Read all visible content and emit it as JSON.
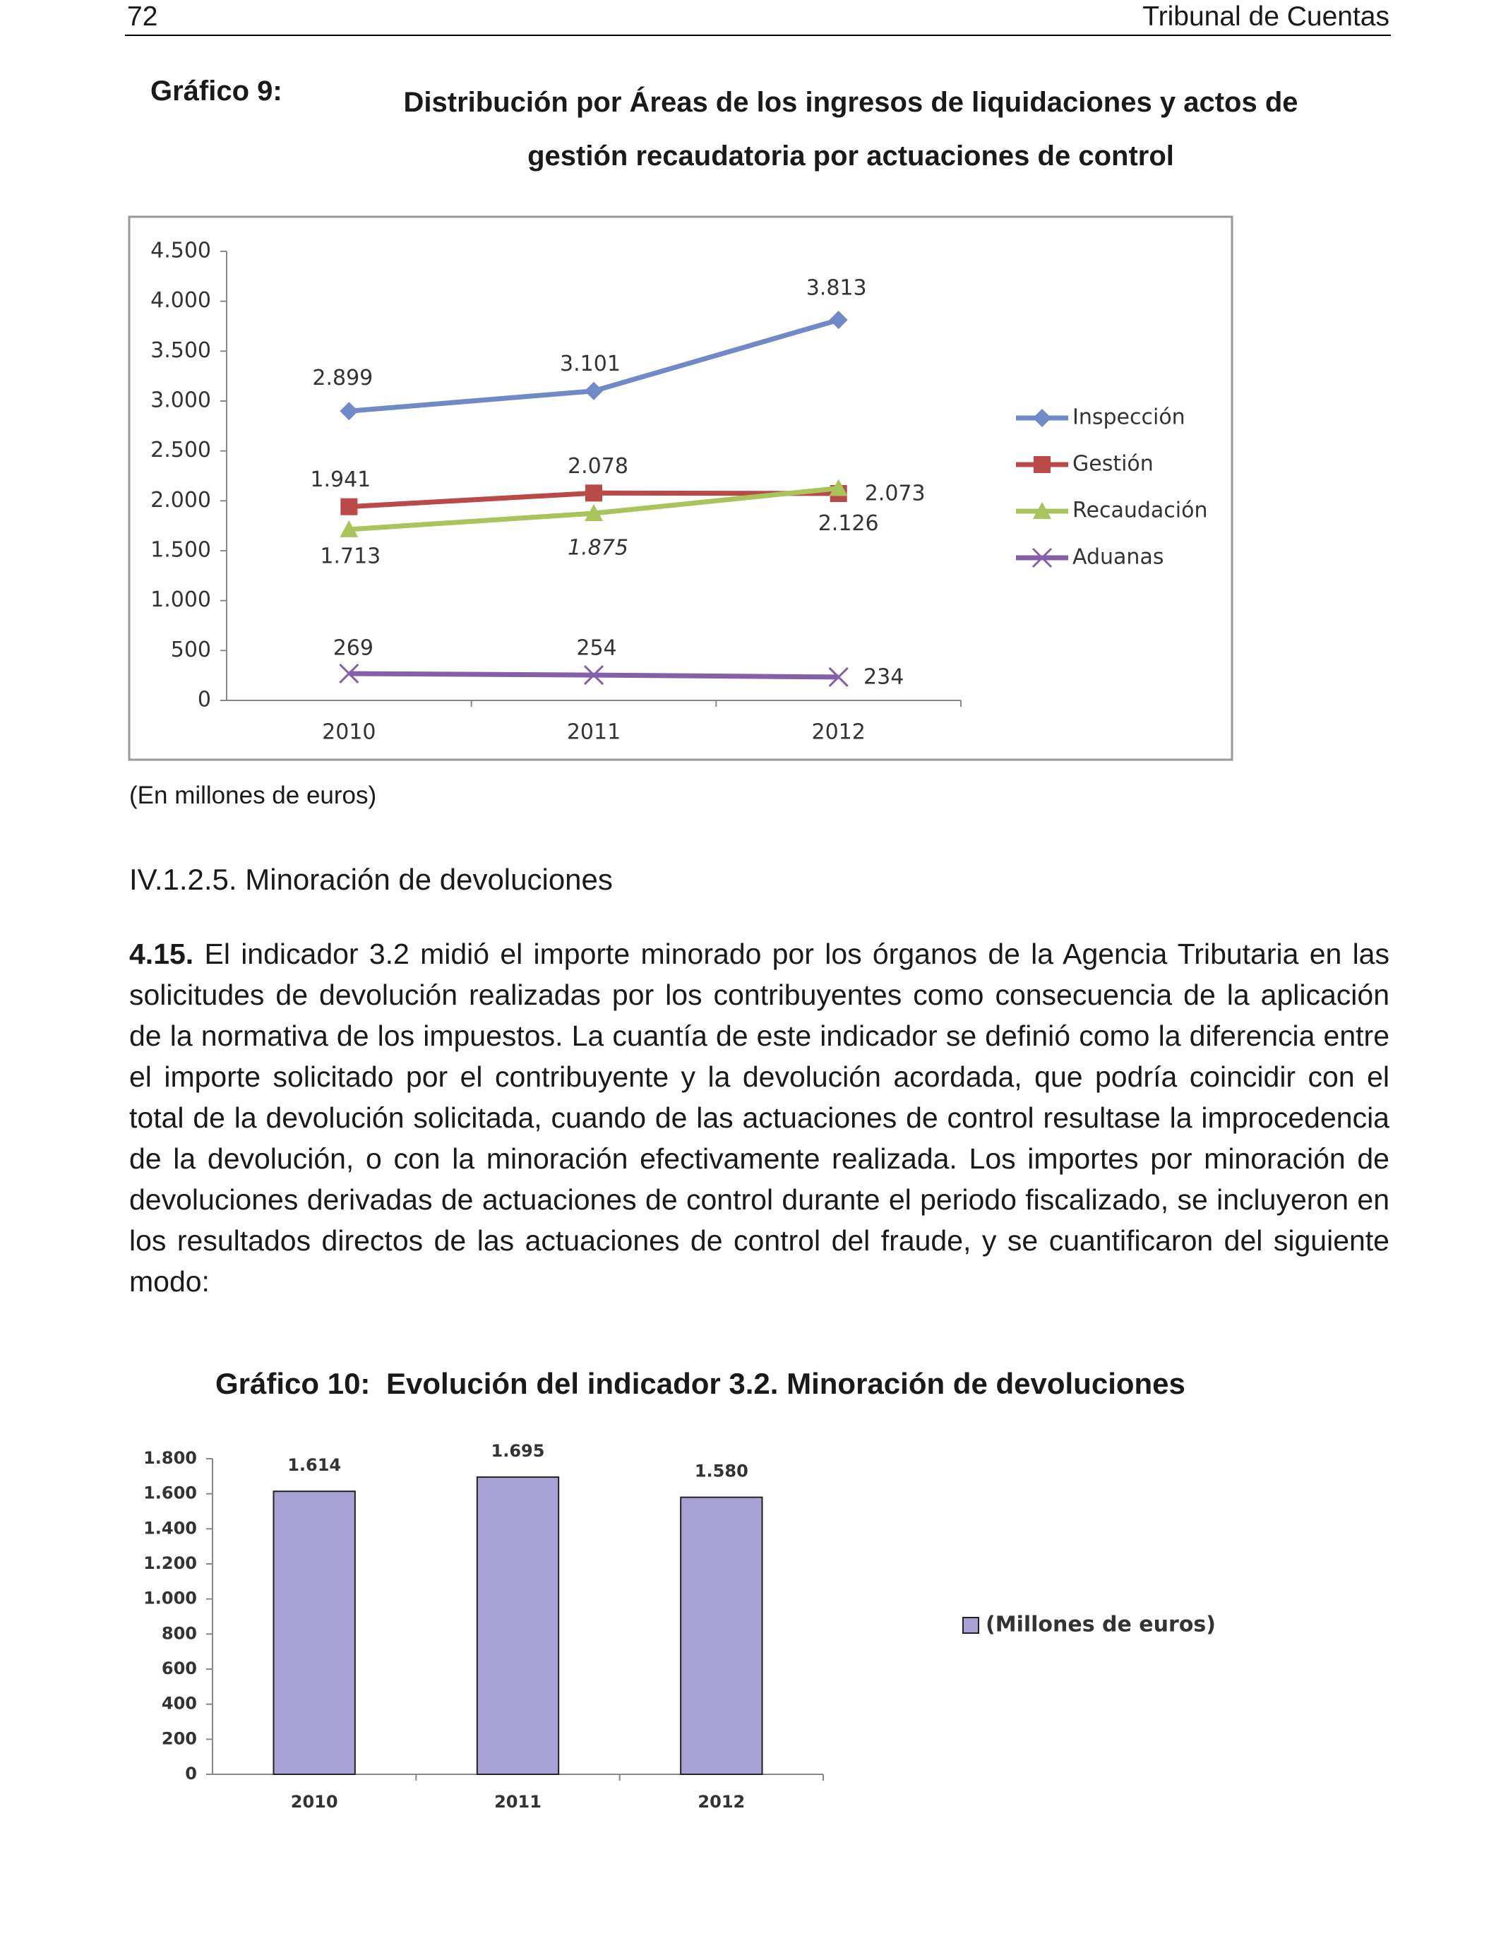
{
  "header": {
    "page_number": "72",
    "publisher": "Tribunal de Cuentas"
  },
  "chart_data": [
    {
      "type": "line",
      "label": "Gráfico 9:",
      "title": "Distribución por Áreas de los ingresos de liquidaciones y actos de gestión recaudatoria por actuaciones de control",
      "categories": [
        "2010",
        "2011",
        "2012"
      ],
      "series": [
        {
          "name": "Inspección",
          "color": "#6f8ac6",
          "marker": "diamond",
          "values": [
            2899,
            3101,
            3813
          ],
          "value_labels": [
            "2.899",
            "3.101",
            "3.813"
          ]
        },
        {
          "name": "Gestión",
          "color": "#b94a48",
          "marker": "square",
          "values": [
            1941,
            2078,
            2073
          ],
          "value_labels": [
            "1.941",
            "2.078",
            "2.073"
          ]
        },
        {
          "name": "Recaudación",
          "color": "#a8c45a",
          "marker": "triangle",
          "values": [
            1713,
            1875,
            2126
          ],
          "value_labels": [
            "1.713",
            "1.875",
            "2.126"
          ]
        },
        {
          "name": "Aduanas",
          "color": "#8460a8",
          "marker": "x",
          "values": [
            269,
            254,
            234
          ],
          "value_labels": [
            "269",
            "254",
            "234"
          ]
        }
      ],
      "ylim": [
        0,
        4500
      ],
      "yticks": [
        0,
        500,
        {
          "value": 1000,
          "label": "1.000"
        },
        {
          "value": 1500,
          "label": "1.500"
        },
        {
          "value": 2000,
          "label": "2.000"
        },
        {
          "value": 2500,
          "label": "2.500"
        },
        {
          "value": 3000,
          "label": "3.000"
        },
        {
          "value": 3500,
          "label": "3.500"
        },
        {
          "value": 4000,
          "label": "4.000"
        },
        {
          "value": 4500,
          "label": "4.500"
        }
      ],
      "grid": false,
      "legend": "right",
      "note": "(En millones de euros)"
    },
    {
      "type": "bar",
      "label": "Gráfico 10:",
      "title": "Evolución del indicador 3.2. Minoración de devoluciones",
      "categories": [
        "2010",
        "2011",
        "2012"
      ],
      "series": [
        {
          "name": "(Millones de euros)",
          "color": "#a9a2d4",
          "values": [
            1614,
            1695,
            1580
          ],
          "value_labels": [
            "1.614",
            "1.695",
            "1.580"
          ]
        }
      ],
      "ylim": [
        0,
        1800
      ],
      "yticks": [
        0,
        200,
        400,
        600,
        800,
        {
          "value": 1000,
          "label": "1.000"
        },
        {
          "value": 1200,
          "label": "1.200"
        },
        {
          "value": 1400,
          "label": "1.400"
        },
        {
          "value": 1600,
          "label": "1.600"
        },
        {
          "value": 1800,
          "label": "1.800"
        }
      ],
      "grid": false,
      "legend": "right"
    }
  ],
  "section": {
    "heading": "IV.1.2.5. Minoración de devoluciones",
    "paragraph_number": "4.15.",
    "paragraph_text": "El indicador 3.2 midió el importe minorado por los órganos de la Agencia Tributaria en las solicitudes de devolución realizadas por los contribuyentes como consecuencia de la aplicación de la normativa de los impuestos. La cuantía de este indicador se definió como la diferencia entre el importe solicitado por el contribuyente y la devolución acordada, que podría coincidir con el total de la devolución solicitada, cuando de las actuaciones de control resultase la improcedencia de la devolución, o con la minoración efectivamente realizada. Los importes por minoración de devoluciones derivadas de actuaciones de control durante el periodo fiscalizado, se incluyeron en los resultados directos de las actuaciones de control del fraude, y se cuantificaron del siguiente modo:"
  }
}
